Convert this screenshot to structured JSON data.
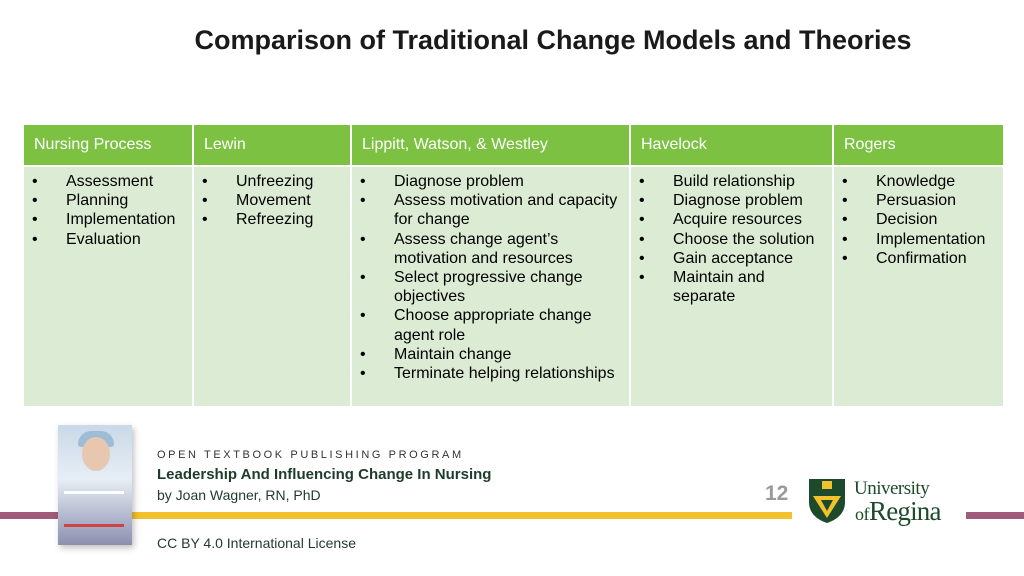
{
  "slide": {
    "title": "Comparison of Traditional Change Models and Theories",
    "page_number": "12"
  },
  "table": {
    "columns": [
      {
        "header": "Nursing Process",
        "items": [
          "Assessment",
          "Planning",
          "Implementation",
          "Evaluation"
        ]
      },
      {
        "header": "Lewin",
        "items": [
          "Unfreezing",
          "Movement",
          "Refreezing"
        ]
      },
      {
        "header": "Lippitt, Watson, & Westley",
        "items": [
          "Diagnose problem",
          "Assess motivation and capacity for change",
          "Assess change agent’s motivation and resources",
          "Select progressive change objectives",
          "Choose appropriate change agent role",
          "Maintain change",
          "Terminate helping relationships"
        ]
      },
      {
        "header": "Havelock",
        "items": [
          "Build relationship",
          "Diagnose problem",
          "Acquire resources",
          "Choose the solution",
          "Gain acceptance",
          "Maintain and separate"
        ]
      },
      {
        "header": "Rogers",
        "items": [
          "Knowledge",
          "Persuasion",
          "Decision",
          "Implementation",
          "Confirmation"
        ]
      }
    ]
  },
  "footer": {
    "program": "OPEN TEXTBOOK PUBLISHING PROGRAM",
    "book_title": "Leadership And Influencing Change In Nursing",
    "author": "by Joan Wagner, RN, PhD",
    "license": "CC BY 4.0 International License",
    "logo_line1": "University",
    "logo_of": "of",
    "logo_regina": "Regina"
  },
  "colors": {
    "header_green": "#7cc142",
    "cell_green": "#dcebd3",
    "bar_gold": "#f2c12e",
    "bar_plum": "#a05a7a",
    "brand_green": "#1c4a2a"
  },
  "icons": [
    "book-cover-image",
    "university-shield-icon"
  ]
}
